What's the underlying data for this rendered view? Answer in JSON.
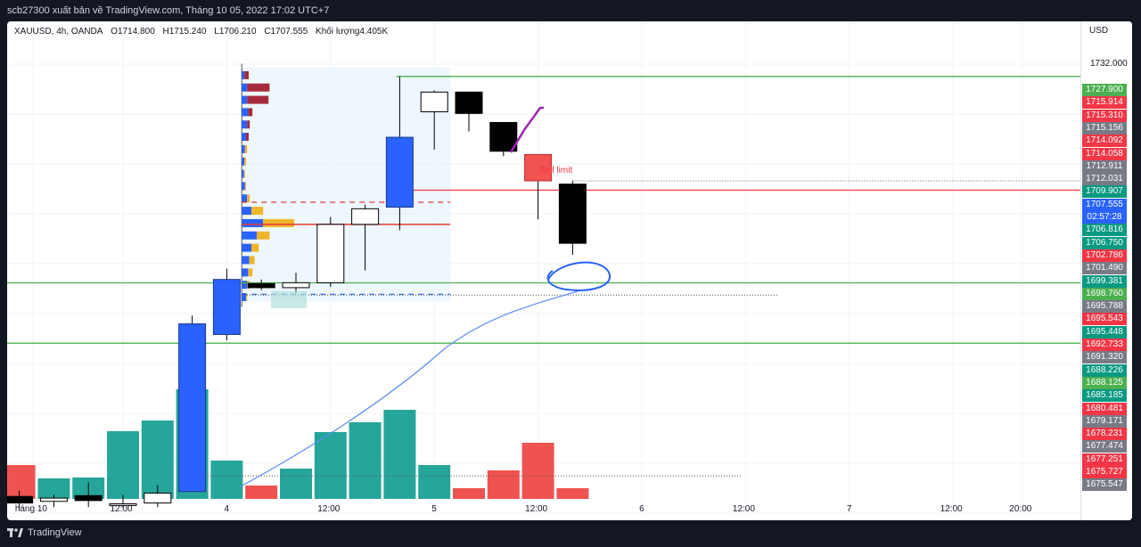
{
  "header": {
    "title": "scb27300 xuất bản về TradingView.com, Tháng 10 05, 2022 17:02 UTC+7"
  },
  "legend": {
    "symbol": "XAUUSD, 4h, OANDA",
    "open": "O1714.800",
    "high": "H1715.240",
    "low": "L1706.210",
    "close": "C1707.555",
    "volume": "Khối lượng4.405K"
  },
  "price_scale": {
    "currency": "USD",
    "top_tick": "1732.000",
    "tags": [
      {
        "text": "1727.900",
        "color": "#4caf50"
      },
      {
        "text": "1715.914",
        "color": "#f23645"
      },
      {
        "text": "1715.310",
        "color": "#f23645"
      },
      {
        "text": "1715.156",
        "color": "#787b86"
      },
      {
        "text": "1714.092",
        "color": "#f23645"
      },
      {
        "text": "1714.058",
        "color": "#f23645"
      },
      {
        "text": "1712.911",
        "color": "#787b86"
      },
      {
        "text": "1712.031",
        "color": "#787b86"
      },
      {
        "text": "1709.907",
        "color": "#089981"
      },
      {
        "text": "1707.555",
        "color": "#2962ff"
      },
      {
        "text": "02:57:28",
        "color": "#2962ff"
      },
      {
        "text": "1706.816",
        "color": "#089981"
      },
      {
        "text": "1706.750",
        "color": "#089981"
      },
      {
        "text": "1702.786",
        "color": "#f23645"
      },
      {
        "text": "1701.490",
        "color": "#787b86"
      },
      {
        "text": "1699.381",
        "color": "#089981"
      },
      {
        "text": "1698.760",
        "color": "#4caf50"
      },
      {
        "text": "1695.788",
        "color": "#787b86"
      },
      {
        "text": "1695.543",
        "color": "#f23645"
      },
      {
        "text": "1695.448",
        "color": "#089981"
      },
      {
        "text": "1692.733",
        "color": "#f23645"
      },
      {
        "text": "1691.320",
        "color": "#787b86"
      },
      {
        "text": "1688.226",
        "color": "#089981"
      },
      {
        "text": "1688.125",
        "color": "#4caf50"
      },
      {
        "text": "1685.185",
        "color": "#089981"
      },
      {
        "text": "1680.481",
        "color": "#f23645"
      },
      {
        "text": "1679.171",
        "color": "#787b86"
      },
      {
        "text": "1678.231",
        "color": "#f23645"
      },
      {
        "text": "1677.474",
        "color": "#787b86"
      },
      {
        "text": "1677.251",
        "color": "#f23645"
      },
      {
        "text": "1675.727",
        "color": "#f23645"
      },
      {
        "text": "1675.547",
        "color": "#787b86"
      }
    ]
  },
  "annotation_text": "Sell limit",
  "footer": {
    "brand": "TradingView"
  },
  "colors": {
    "up_body": "#2962ff",
    "down_body": "#000000",
    "hollow_up": "#ffffff",
    "volume_up": "#26a69a",
    "volume_down": "#ef5350",
    "level_line": "#4caf50",
    "sell_line": "#f23645",
    "range_fill": "#e3f2fd",
    "profile_up": "#2962ff",
    "profile_down": "#f0b429",
    "profile_red": "#a52a3a",
    "drawing_blue": "#2962ff",
    "drawing_purple": "#9c27b0",
    "ma_line": "#5b8def"
  },
  "chart_data": {
    "type": "candlestick",
    "interval": "4h",
    "x_axis_labels": [
      {
        "text": "háng 10",
        "t": -2.6
      },
      {
        "text": "12:00",
        "t": 0
      },
      {
        "text": "4",
        "t": 3
      },
      {
        "text": "12:00",
        "t": 6
      },
      {
        "text": "5",
        "t": 9
      },
      {
        "text": "12:00",
        "t": 12
      },
      {
        "text": "6",
        "t": 15
      },
      {
        "text": "12:00",
        "t": 18
      },
      {
        "text": "7",
        "t": 21
      },
      {
        "text": "12:00",
        "t": 24
      },
      {
        "text": "20:00",
        "t": 26
      }
    ],
    "ylim": [
      1675.2,
      1734.6
    ],
    "candles": [
      {
        "t": -3,
        "open": 1676.0,
        "high": 1677.5,
        "low": 1675.3,
        "close": 1676.8,
        "style": "black"
      },
      {
        "t": -2,
        "open": 1676.2,
        "high": 1677.0,
        "low": 1675.5,
        "close": 1676.6,
        "style": "hollow"
      },
      {
        "t": -1,
        "open": 1676.3,
        "high": 1678.5,
        "low": 1675.5,
        "close": 1676.9,
        "style": "black"
      },
      {
        "t": 0,
        "open": 1675.9,
        "high": 1677.0,
        "low": 1675.4,
        "close": 1675.7,
        "style": "hollow"
      },
      {
        "t": 1,
        "open": 1676.0,
        "high": 1678.2,
        "low": 1675.5,
        "close": 1677.2,
        "style": "hollow"
      },
      {
        "t": 2,
        "open": 1677.4,
        "high": 1698.8,
        "low": 1677.4,
        "close": 1697.8,
        "style": "blue"
      },
      {
        "t": 3,
        "open": 1696.5,
        "high": 1704.5,
        "low": 1695.8,
        "close": 1703.2,
        "style": "blue"
      },
      {
        "t": 4,
        "open": 1702.7,
        "high": 1703.2,
        "low": 1701.9,
        "close": 1702.2,
        "style": "black"
      },
      {
        "t": 5,
        "open": 1702.2,
        "high": 1704.0,
        "low": 1701.5,
        "close": 1702.8,
        "style": "hollow"
      },
      {
        "t": 6,
        "open": 1702.8,
        "high": 1710.8,
        "low": 1702.3,
        "close": 1709.9,
        "style": "hollow"
      },
      {
        "t": 7,
        "open": 1709.9,
        "high": 1712.3,
        "low": 1704.3,
        "close": 1711.8,
        "style": "hollow"
      },
      {
        "t": 8,
        "open": 1712.0,
        "high": 1727.9,
        "low": 1709.2,
        "close": 1720.5,
        "style": "blue"
      },
      {
        "t": 9,
        "open": 1723.6,
        "high": 1726.2,
        "low": 1719.0,
        "close": 1726.0,
        "style": "hollow"
      },
      {
        "t": 10,
        "open": 1726.0,
        "high": 1726.0,
        "low": 1721.2,
        "close": 1723.4,
        "style": "black"
      },
      {
        "t": 11,
        "open": 1722.3,
        "high": 1722.3,
        "low": 1718.2,
        "close": 1718.8,
        "style": "black"
      },
      {
        "t": 12,
        "open": 1718.4,
        "high": 1718.4,
        "low": 1710.5,
        "close": 1715.2,
        "style": "red"
      },
      {
        "t": 13,
        "open": 1714.8,
        "high": 1715.2,
        "low": 1706.2,
        "close": 1707.6,
        "style": "black"
      }
    ],
    "volumes": [
      {
        "t": -3,
        "v": 0.38,
        "dir": "down"
      },
      {
        "t": -2,
        "v": 0.23,
        "dir": "up"
      },
      {
        "t": -1,
        "v": 0.24,
        "dir": "up"
      },
      {
        "t": 0,
        "v": 0.76,
        "dir": "up"
      },
      {
        "t": 1,
        "v": 0.88,
        "dir": "up"
      },
      {
        "t": 2,
        "v": 1.23,
        "dir": "up"
      },
      {
        "t": 3,
        "v": 0.43,
        "dir": "up"
      },
      {
        "t": 4,
        "v": 0.15,
        "dir": "down"
      },
      {
        "t": 5,
        "v": 0.34,
        "dir": "up"
      },
      {
        "t": 6,
        "v": 0.75,
        "dir": "up"
      },
      {
        "t": 7,
        "v": 0.86,
        "dir": "up"
      },
      {
        "t": 8,
        "v": 1.0,
        "dir": "up"
      },
      {
        "t": 9,
        "v": 0.38,
        "dir": "up"
      },
      {
        "t": 10,
        "v": 0.12,
        "dir": "down"
      },
      {
        "t": 11,
        "v": 0.32,
        "dir": "down"
      },
      {
        "t": 12,
        "v": 0.63,
        "dir": "down"
      },
      {
        "t": 13,
        "v": 0.12,
        "dir": "down"
      }
    ],
    "horizontal_levels": [
      {
        "price": 1727.9,
        "style": "solid",
        "color": "#4caf50"
      },
      {
        "price": 1714.06,
        "style": "solid",
        "color": "#f23645"
      },
      {
        "price": 1702.79,
        "style": "solid",
        "color": "#4caf50"
      },
      {
        "price": 1695.45,
        "style": "solid",
        "color": "#4caf50"
      }
    ],
    "volume_profile": {
      "range_t": [
        4.0,
        9.0
      ],
      "range_price": [
        1700.5,
        1729.0
      ],
      "poc": 1709.9,
      "value_area_high": 1712.6,
      "value_area_low": 1701.4,
      "bins": [
        {
          "price": 1728.0,
          "up": 0.05,
          "down": 0.08
        },
        {
          "price": 1726.5,
          "up": 0.1,
          "down": 0.42
        },
        {
          "price": 1725.0,
          "up": 0.1,
          "down": 0.4
        },
        {
          "price": 1723.5,
          "up": 0.12,
          "down": 0.08
        },
        {
          "price": 1722.0,
          "up": 0.1,
          "down": 0.05
        },
        {
          "price": 1720.5,
          "up": 0.08,
          "down": 0.05
        },
        {
          "price": 1719.0,
          "up": 0.06,
          "down": 0.04
        },
        {
          "price": 1717.5,
          "up": 0.05,
          "down": 0.03
        },
        {
          "price": 1716.0,
          "up": 0.04,
          "down": 0.02
        },
        {
          "price": 1714.5,
          "up": 0.06,
          "down": 0.02
        },
        {
          "price": 1713.0,
          "up": 0.1,
          "down": 0.05
        },
        {
          "price": 1711.5,
          "up": 0.18,
          "down": 0.22
        },
        {
          "price": 1710.0,
          "up": 0.4,
          "down": 0.58
        },
        {
          "price": 1708.5,
          "up": 0.28,
          "down": 0.24
        },
        {
          "price": 1707.0,
          "up": 0.18,
          "down": 0.14
        },
        {
          "price": 1705.5,
          "up": 0.14,
          "down": 0.1
        },
        {
          "price": 1704.0,
          "up": 0.12,
          "down": 0.08
        },
        {
          "price": 1702.5,
          "up": 0.1,
          "down": 0.05
        },
        {
          "price": 1701.0,
          "up": 0.08,
          "down": 0.02
        }
      ]
    }
  }
}
